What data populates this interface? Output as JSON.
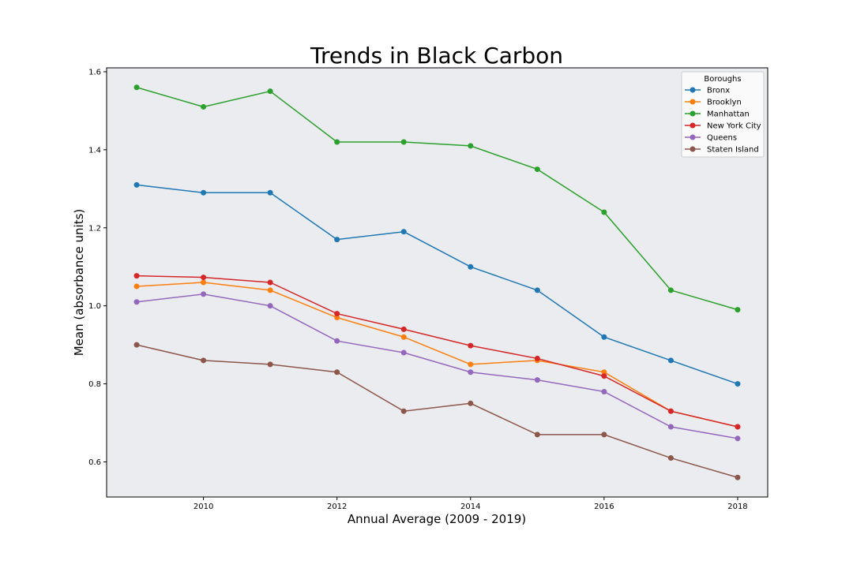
{
  "chart_data": {
    "type": "line",
    "title": "Trends in Black Carbon",
    "xlabel": "Annual Average (2009 - 2019)",
    "ylabel": "Mean (absorbance units)",
    "x": [
      2009,
      2010,
      2011,
      2012,
      2013,
      2014,
      2015,
      2016,
      2017,
      2018
    ],
    "xlim": [
      2008.55,
      2018.45
    ],
    "ylim": [
      0.51,
      1.61
    ],
    "xticks": [
      2010,
      2012,
      2014,
      2016,
      2018
    ],
    "yticks": [
      0.6,
      0.8,
      1.0,
      1.2,
      1.4,
      1.6
    ],
    "xtick_labels": [
      "2010",
      "2012",
      "2014",
      "2016",
      "2018"
    ],
    "ytick_labels": [
      "0.6",
      "0.8",
      "1.0",
      "1.2",
      "1.4",
      "1.6"
    ],
    "grid": false,
    "background_color": "#eaecef",
    "legend": {
      "title": "Boroughs",
      "placement": "top-right"
    },
    "series": [
      {
        "name": "Bronx",
        "color": "#1f77b4",
        "values": [
          1.31,
          1.29,
          1.29,
          1.17,
          1.19,
          1.1,
          1.04,
          0.92,
          0.86,
          0.8
        ]
      },
      {
        "name": "Brooklyn",
        "color": "#ff7f0e",
        "values": [
          1.05,
          1.06,
          1.04,
          0.97,
          0.92,
          0.85,
          0.86,
          0.83,
          0.73,
          0.69
        ]
      },
      {
        "name": "Manhattan",
        "color": "#2ca02c",
        "values": [
          1.56,
          1.51,
          1.55,
          1.42,
          1.42,
          1.41,
          1.35,
          1.24,
          1.04,
          0.99
        ]
      },
      {
        "name": "New York City",
        "color": "#d62728",
        "values": [
          1.077,
          1.073,
          1.06,
          0.98,
          0.94,
          0.898,
          0.865,
          0.82,
          0.73,
          0.69
        ]
      },
      {
        "name": "Queens",
        "color": "#9467bd",
        "values": [
          1.01,
          1.03,
          1.0,
          0.91,
          0.88,
          0.83,
          0.81,
          0.78,
          0.69,
          0.66
        ]
      },
      {
        "name": "Staten Island",
        "color": "#8c564b",
        "values": [
          0.9,
          0.86,
          0.85,
          0.83,
          0.73,
          0.75,
          0.67,
          0.67,
          0.61,
          0.56
        ]
      }
    ]
  }
}
